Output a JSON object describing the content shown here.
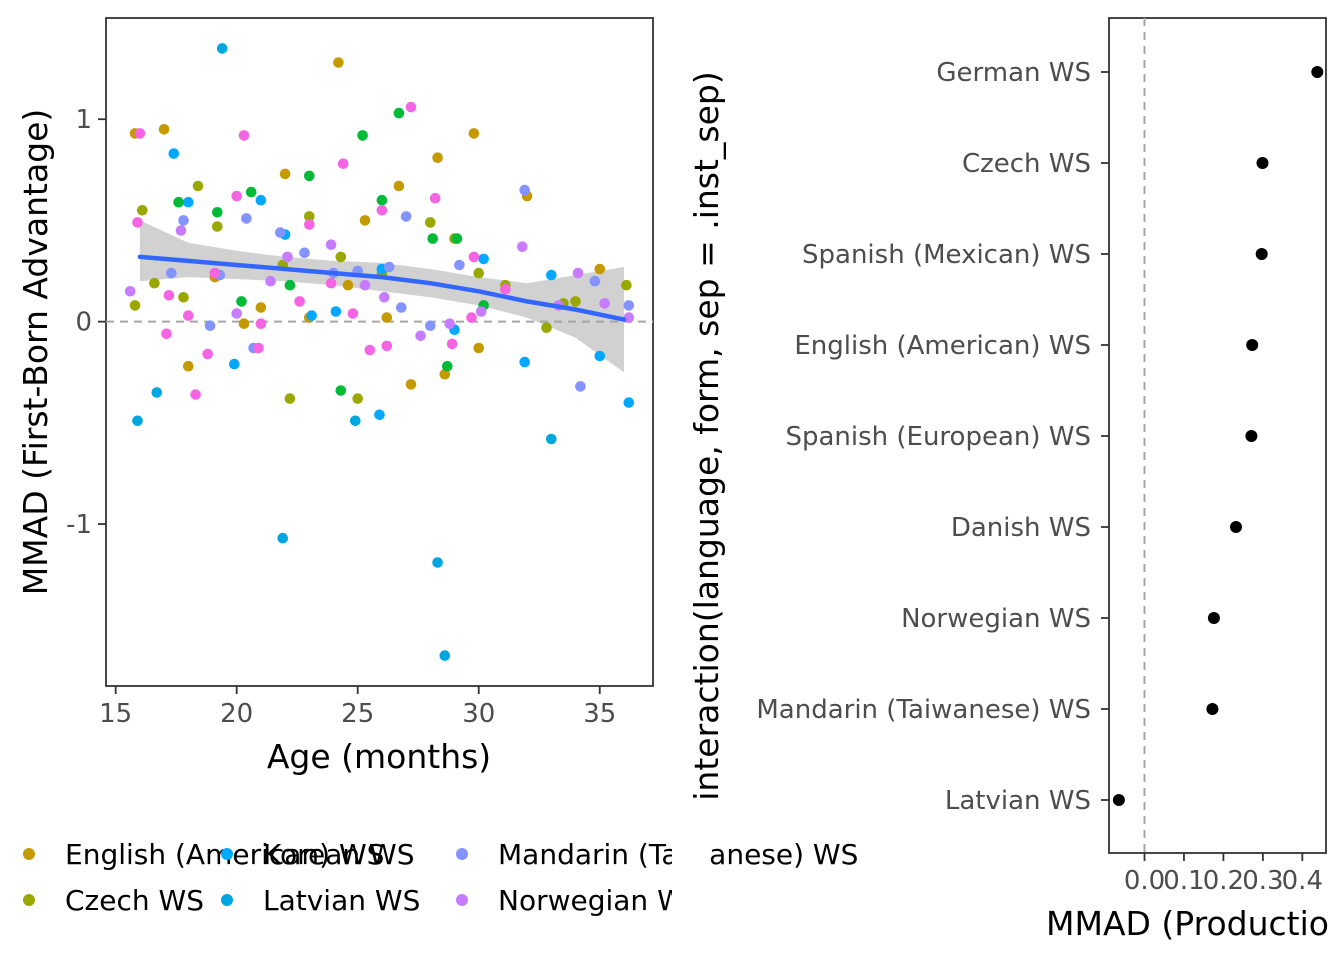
{
  "chart_data": [
    {
      "type": "scatter",
      "title": "",
      "xlabel": "Age (months)",
      "ylabel": "MMAD (First-Born Advantage)",
      "xlim": [
        14.6,
        37.2
      ],
      "ylim": [
        -1.8,
        1.5
      ],
      "xticks": [
        "15",
        "20",
        "25",
        "30",
        "35"
      ],
      "yticks": [
        "-1",
        "0",
        "1"
      ],
      "reference_line_y": 0,
      "grid": false,
      "smooth": {
        "method": "loess",
        "color": "#3366ff",
        "x": [
          16.0,
          18.0,
          20.0,
          22.0,
          24.0,
          26.0,
          28.0,
          30.0,
          32.0,
          34.0,
          36.0
        ],
        "y": [
          0.32,
          0.3,
          0.28,
          0.26,
          0.24,
          0.22,
          0.19,
          0.15,
          0.1,
          0.06,
          0.01
        ],
        "lower": [
          0.2,
          0.22,
          0.21,
          0.2,
          0.18,
          0.15,
          0.12,
          0.08,
          0.02,
          -0.08,
          -0.25
        ],
        "upper": [
          0.5,
          0.39,
          0.35,
          0.32,
          0.3,
          0.29,
          0.26,
          0.22,
          0.19,
          0.23,
          0.27
        ]
      },
      "legend": {
        "position": "bottom",
        "entries": [
          {
            "label": "English (American) WS",
            "color": "#c49a00"
          },
          {
            "label": "Czech WS",
            "color": "#99a800"
          },
          {
            "label": "Korean WS",
            "color": "#00a9ff"
          },
          {
            "label": "Latvian WS",
            "color": "#00a6e0"
          },
          {
            "label": "Mandarin (Taiwanese) WS",
            "color": "#8494ff"
          },
          {
            "label": "Norwegian WS",
            "color": "#c77cff"
          }
        ]
      },
      "series": [
        {
          "label": "English (American) WS",
          "color": "#c49a00",
          "points": [
            [
              15.8,
              0.93
            ],
            [
              17.0,
              0.95
            ],
            [
              22.0,
              0.73
            ],
            [
              24.2,
              1.28
            ],
            [
              28.3,
              0.81
            ],
            [
              29.8,
              0.93
            ],
            [
              25.3,
              0.5
            ],
            [
              26.7,
              0.67
            ],
            [
              28.6,
              -0.26
            ],
            [
              27.2,
              -0.31
            ],
            [
              32.0,
              0.62
            ],
            [
              35.0,
              0.26
            ],
            [
              23.0,
              0.02
            ],
            [
              20.3,
              -0.01
            ],
            [
              19.1,
              0.22
            ],
            [
              18.0,
              -0.22
            ],
            [
              30.0,
              -0.13
            ],
            [
              26.2,
              0.02
            ],
            [
              24.6,
              0.18
            ],
            [
              21.0,
              0.07
            ]
          ]
        },
        {
          "label": "Czech WS",
          "color": "#99a800",
          "points": [
            [
              16.1,
              0.55
            ],
            [
              18.4,
              0.67
            ],
            [
              19.2,
              0.47
            ],
            [
              21.9,
              0.28
            ],
            [
              23.0,
              0.52
            ],
            [
              24.3,
              0.32
            ],
            [
              26.0,
              0.24
            ],
            [
              28.0,
              0.49
            ],
            [
              29.0,
              0.41
            ],
            [
              30.0,
              0.24
            ],
            [
              31.1,
              0.18
            ],
            [
              33.5,
              0.09
            ],
            [
              34.0,
              0.1
            ],
            [
              36.1,
              0.18
            ],
            [
              15.8,
              0.08
            ],
            [
              16.6,
              0.19
            ],
            [
              17.8,
              0.12
            ],
            [
              22.2,
              -0.38
            ],
            [
              25.0,
              -0.38
            ],
            [
              32.8,
              -0.03
            ]
          ]
        },
        {
          "label": "Spanish (European) WS",
          "color": "#00ba38",
          "points": [
            [
              17.6,
              0.59
            ],
            [
              19.2,
              0.54
            ],
            [
              20.6,
              0.64
            ],
            [
              23.0,
              0.72
            ],
            [
              25.2,
              0.92
            ],
            [
              26.0,
              0.6
            ],
            [
              26.7,
              1.03
            ],
            [
              28.1,
              0.41
            ],
            [
              29.1,
              0.41
            ],
            [
              30.2,
              0.08
            ],
            [
              24.3,
              -0.34
            ],
            [
              20.2,
              0.1
            ],
            [
              22.2,
              0.18
            ],
            [
              28.7,
              -0.22
            ]
          ]
        },
        {
          "label": "Korean WS",
          "color": "#00a9ff",
          "points": [
            [
              17.4,
              0.83
            ],
            [
              18.0,
              0.59
            ],
            [
              21.0,
              0.6
            ],
            [
              22.0,
              0.43
            ],
            [
              24.1,
              0.05
            ],
            [
              26.0,
              0.26
            ],
            [
              29.0,
              -0.04
            ],
            [
              30.2,
              0.31
            ],
            [
              31.9,
              -0.2
            ],
            [
              33.0,
              0.23
            ],
            [
              35.0,
              -0.17
            ],
            [
              36.2,
              -0.4
            ],
            [
              19.9,
              -0.21
            ],
            [
              25.9,
              -0.46
            ],
            [
              23.1,
              0.03
            ]
          ]
        },
        {
          "label": "Latvian WS",
          "color": "#00a6e0",
          "points": [
            [
              19.4,
              1.35
            ],
            [
              21.9,
              -1.07
            ],
            [
              28.3,
              -1.19
            ],
            [
              28.6,
              -1.65
            ],
            [
              24.9,
              -0.49
            ],
            [
              33.0,
              -0.58
            ],
            [
              15.9,
              -0.49
            ],
            [
              16.7,
              -0.35
            ]
          ]
        },
        {
          "label": "Mandarin (Taiwanese) WS",
          "color": "#8494ff",
          "points": [
            [
              17.3,
              0.24
            ],
            [
              17.8,
              0.5
            ],
            [
              19.3,
              0.23
            ],
            [
              20.4,
              0.51
            ],
            [
              21.8,
              0.44
            ],
            [
              22.8,
              0.34
            ],
            [
              24.0,
              0.24
            ],
            [
              25.0,
              0.25
            ],
            [
              26.3,
              0.27
            ],
            [
              27.0,
              0.52
            ],
            [
              28.0,
              -0.02
            ],
            [
              29.2,
              0.28
            ],
            [
              31.9,
              0.65
            ],
            [
              34.2,
              -0.32
            ],
            [
              34.8,
              0.2
            ],
            [
              36.2,
              0.08
            ],
            [
              20.7,
              -0.13
            ],
            [
              18.9,
              -0.02
            ],
            [
              26.8,
              0.07
            ]
          ]
        },
        {
          "label": "Norwegian WS",
          "color": "#c77cff",
          "points": [
            [
              15.6,
              0.15
            ],
            [
              17.7,
              0.45
            ],
            [
              20.0,
              0.04
            ],
            [
              21.4,
              0.2
            ],
            [
              22.1,
              0.32
            ],
            [
              23.9,
              0.38
            ],
            [
              25.3,
              0.18
            ],
            [
              26.1,
              0.12
            ],
            [
              27.6,
              -0.07
            ],
            [
              28.8,
              -0.01
            ],
            [
              30.1,
              0.05
            ],
            [
              31.8,
              0.37
            ],
            [
              33.3,
              0.08
            ],
            [
              34.1,
              0.24
            ],
            [
              35.2,
              0.09
            ],
            [
              36.2,
              0.02
            ]
          ]
        },
        {
          "label": "Danish WS",
          "color": "#f564e3",
          "points": [
            [
              16.0,
              0.93
            ],
            [
              15.9,
              0.49
            ],
            [
              17.2,
              0.13
            ],
            [
              18.0,
              0.03
            ],
            [
              18.3,
              -0.36
            ],
            [
              18.8,
              -0.16
            ],
            [
              20.0,
              0.62
            ],
            [
              20.3,
              0.92
            ],
            [
              20.9,
              -0.13
            ],
            [
              21.0,
              -0.01
            ],
            [
              22.6,
              0.1
            ],
            [
              23.0,
              0.48
            ],
            [
              23.9,
              0.19
            ],
            [
              24.4,
              0.78
            ],
            [
              24.8,
              0.04
            ],
            [
              25.5,
              -0.14
            ],
            [
              26.0,
              0.55
            ],
            [
              26.2,
              -0.12
            ],
            [
              27.2,
              1.06
            ],
            [
              28.2,
              0.61
            ],
            [
              28.9,
              -0.11
            ],
            [
              29.8,
              0.32
            ],
            [
              29.7,
              0.02
            ],
            [
              31.1,
              0.16
            ],
            [
              17.1,
              -0.06
            ],
            [
              19.1,
              0.24
            ]
          ]
        }
      ]
    },
    {
      "type": "scatter",
      "title": "",
      "xlabel": "MMAD (Productio",
      "ylabel": "interaction(language, form, sep = .inst_sep)",
      "xlim": [
        -0.09,
        0.46
      ],
      "xticks": [
        "0.0",
        "0.1",
        "0.2",
        "0.3",
        "0.4"
      ],
      "reference_line_x": 0,
      "grid": false,
      "categories": [
        "Latvian WS",
        "Mandarin (Taiwanese) WS",
        "Norwegian WS",
        "Danish WS",
        "Spanish (European) WS",
        "English (American) WS",
        "Spanish (Mexican) WS",
        "Czech WS",
        "German WS"
      ],
      "values": [
        -0.065,
        0.172,
        0.176,
        0.232,
        0.271,
        0.273,
        0.297,
        0.299,
        0.438
      ]
    }
  ]
}
